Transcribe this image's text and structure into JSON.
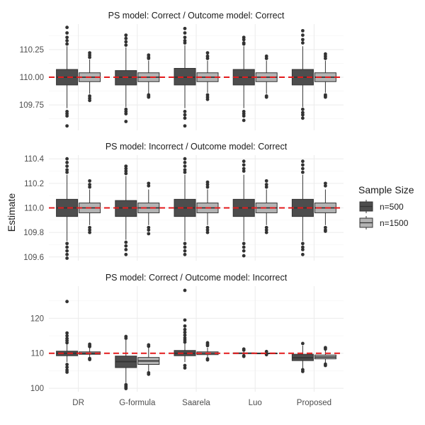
{
  "chart_data": {
    "type": "boxplot",
    "ylabel": "Estimate",
    "xlabel": "",
    "categories": [
      "DR",
      "G-formula",
      "Saarela",
      "Luo",
      "Proposed"
    ],
    "reference_line": {
      "y": 110,
      "color": "#e31a1c",
      "style": "dashed"
    },
    "legend": {
      "title": "Sample Size",
      "placement": "right",
      "entries": [
        {
          "name": "n=500",
          "color": "#4d4d4d"
        },
        {
          "name": "n=1500",
          "color": "#b3b3b3"
        }
      ]
    },
    "panels": [
      {
        "title": "PS model: Correct / Outcome model: Correct",
        "ylim": [
          109.52,
          110.48
        ],
        "yticks": [
          109.75,
          110.0,
          110.25
        ],
        "ytick_labels": [
          "109.75",
          "110.00",
          "110.25"
        ],
        "series": [
          {
            "name": "n=500",
            "boxes": [
              {
                "q1": 109.93,
                "median": 110.0,
                "q3": 110.07,
                "whisker_low": 109.72,
                "whisker_high": 110.28,
                "outliers": [
                  110.45,
                  110.4,
                  110.36,
                  110.33,
                  110.3,
                  109.69,
                  109.67,
                  109.65,
                  109.56
                ]
              },
              {
                "q1": 109.93,
                "median": 110.0,
                "q3": 110.06,
                "whisker_low": 109.73,
                "whisker_high": 110.27,
                "outliers": [
                  110.38,
                  110.35,
                  110.32,
                  110.29,
                  109.71,
                  109.69,
                  109.67,
                  109.6
                ]
              },
              {
                "q1": 109.93,
                "median": 110.0,
                "q3": 110.08,
                "whisker_low": 109.72,
                "whisker_high": 110.29,
                "outliers": [
                  110.44,
                  110.4,
                  110.36,
                  110.33,
                  110.31,
                  109.69,
                  109.66,
                  109.63,
                  109.56
                ]
              },
              {
                "q1": 109.93,
                "median": 110.0,
                "q3": 110.07,
                "whisker_low": 109.72,
                "whisker_high": 110.28,
                "outliers": [
                  110.36,
                  110.34,
                  110.31,
                  110.3,
                  109.69,
                  109.67,
                  109.65,
                  109.61
                ]
              },
              {
                "q1": 109.93,
                "median": 110.0,
                "q3": 110.07,
                "whisker_low": 109.73,
                "whisker_high": 110.28,
                "outliers": [
                  110.42,
                  110.38,
                  110.34,
                  110.31,
                  109.71,
                  109.68,
                  109.66,
                  109.63
                ]
              }
            ]
          },
          {
            "name": "n=1500",
            "boxes": [
              {
                "q1": 109.96,
                "median": 110.0,
                "q3": 110.04,
                "whisker_low": 109.85,
                "whisker_high": 110.16,
                "outliers": [
                  110.22,
                  110.2,
                  110.18,
                  109.83,
                  109.81,
                  109.79
                ]
              },
              {
                "q1": 109.96,
                "median": 110.0,
                "q3": 110.04,
                "whisker_low": 109.85,
                "whisker_high": 110.15,
                "outliers": [
                  110.2,
                  110.18,
                  110.17,
                  109.84,
                  109.83,
                  109.82
                ]
              },
              {
                "q1": 109.96,
                "median": 110.0,
                "q3": 110.04,
                "whisker_low": 109.86,
                "whisker_high": 110.15,
                "outliers": [
                  110.22,
                  110.19,
                  110.17,
                  109.84,
                  109.82,
                  109.8
                ]
              },
              {
                "q1": 109.96,
                "median": 110.0,
                "q3": 110.04,
                "whisker_low": 109.85,
                "whisker_high": 110.15,
                "outliers": [
                  110.19,
                  110.17,
                  109.83,
                  109.82
                ]
              },
              {
                "q1": 109.96,
                "median": 110.0,
                "q3": 110.04,
                "whisker_low": 109.86,
                "whisker_high": 110.15,
                "outliers": [
                  110.21,
                  110.19,
                  110.17,
                  109.84,
                  109.83,
                  109.82
                ]
              }
            ]
          }
        ]
      },
      {
        "title": "PS model: Incorrect / Outcome model: Correct",
        "ylim": [
          109.57,
          110.43
        ],
        "yticks": [
          109.6,
          109.8,
          110.0,
          110.2,
          110.4
        ],
        "ytick_labels": [
          "109.6",
          "109.8",
          "110.0",
          "110.2",
          "110.4"
        ],
        "series": [
          {
            "name": "n=500",
            "boxes": [
              {
                "q1": 109.93,
                "median": 110.0,
                "q3": 110.07,
                "whisker_low": 109.73,
                "whisker_high": 110.27,
                "outliers": [
                  110.4,
                  110.37,
                  110.34,
                  110.31,
                  110.29,
                  109.71,
                  109.68,
                  109.65,
                  109.62,
                  109.59
                ]
              },
              {
                "q1": 109.93,
                "median": 110.0,
                "q3": 110.06,
                "whisker_low": 109.74,
                "whisker_high": 110.26,
                "outliers": [
                  110.34,
                  110.32,
                  110.3,
                  110.28,
                  109.72,
                  109.69,
                  109.66,
                  109.62
                ]
              },
              {
                "q1": 109.93,
                "median": 110.0,
                "q3": 110.07,
                "whisker_low": 109.73,
                "whisker_high": 110.27,
                "outliers": [
                  110.4,
                  110.37,
                  110.34,
                  110.31,
                  110.29,
                  109.71,
                  109.68,
                  109.65,
                  109.62
                ]
              },
              {
                "q1": 109.93,
                "median": 110.0,
                "q3": 110.07,
                "whisker_low": 109.73,
                "whisker_high": 110.27,
                "outliers": [
                  110.38,
                  110.35,
                  110.32,
                  110.3,
                  109.71,
                  109.68,
                  109.65,
                  109.61
                ]
              },
              {
                "q1": 109.93,
                "median": 110.0,
                "q3": 110.07,
                "whisker_low": 109.73,
                "whisker_high": 110.27,
                "outliers": [
                  110.38,
                  110.35,
                  110.32,
                  110.29,
                  109.71,
                  109.68,
                  109.66,
                  109.62
                ]
              }
            ]
          },
          {
            "name": "n=1500",
            "boxes": [
              {
                "q1": 109.96,
                "median": 110.0,
                "q3": 110.04,
                "whisker_low": 109.86,
                "whisker_high": 110.15,
                "outliers": [
                  110.22,
                  110.19,
                  110.17,
                  109.84,
                  109.82,
                  109.8
                ]
              },
              {
                "q1": 109.96,
                "median": 110.0,
                "q3": 110.04,
                "whisker_low": 109.86,
                "whisker_high": 110.15,
                "outliers": [
                  110.2,
                  110.18,
                  109.84,
                  109.82,
                  109.79
                ]
              },
              {
                "q1": 109.96,
                "median": 110.0,
                "q3": 110.04,
                "whisker_low": 109.86,
                "whisker_high": 110.15,
                "outliers": [
                  110.21,
                  110.19,
                  110.17,
                  109.84,
                  109.82,
                  109.8
                ]
              },
              {
                "q1": 109.96,
                "median": 110.0,
                "q3": 110.04,
                "whisker_low": 109.86,
                "whisker_high": 110.15,
                "outliers": [
                  110.22,
                  110.19,
                  110.17,
                  109.84,
                  109.82,
                  109.8
                ]
              },
              {
                "q1": 109.96,
                "median": 110.0,
                "q3": 110.04,
                "whisker_low": 109.86,
                "whisker_high": 110.15,
                "outliers": [
                  110.2,
                  110.18,
                  109.84,
                  109.82,
                  109.81
                ]
              }
            ]
          }
        ]
      },
      {
        "title": "PS model: Correct / Outcome model: Incorrect",
        "ylim": [
          99.0,
          129.2
        ],
        "yticks": [
          100,
          110,
          120
        ],
        "ytick_labels": [
          "100",
          "110",
          "120"
        ],
        "series": [
          {
            "name": "n=500",
            "boxes": [
              {
                "q1": 109.3,
                "median": 110.0,
                "q3": 110.6,
                "whisker_low": 107.5,
                "whisker_high": 112.5,
                "outliers": [
                  124.8,
                  115.8,
                  115.0,
                  114.2,
                  113.6,
                  113.0,
                  106.8,
                  106.0,
                  105.2,
                  104.6
                ]
              },
              {
                "q1": 105.9,
                "median": 107.6,
                "q3": 109.2,
                "whisker_low": 101.5,
                "whisker_high": 113.8,
                "outliers": [
                  114.8,
                  114.3,
                  101.0,
                  100.6,
                  100.2,
                  99.9
                ]
              },
              {
                "q1": 109.3,
                "median": 110.0,
                "q3": 110.8,
                "whisker_low": 107.5,
                "whisker_high": 112.8,
                "outliers": [
                  128.0,
                  119.5,
                  117.8,
                  116.8,
                  116.0,
                  115.2,
                  114.4,
                  113.8,
                  113.2,
                  106.5,
                  105.8
                ]
              },
              {
                "q1": 109.9,
                "median": 110.0,
                "q3": 110.1,
                "whisker_low": 109.6,
                "whisker_high": 110.4,
                "outliers": [
                  111.2,
                  110.9,
                  109.3,
                  109.1
                ]
              },
              {
                "q1": 107.9,
                "median": 108.7,
                "q3": 109.7,
                "whisker_low": 105.8,
                "whisker_high": 112.2,
                "outliers": [
                  112.8,
                  105.3,
                  104.8
                ]
              }
            ]
          },
          {
            "name": "n=1500",
            "boxes": [
              {
                "q1": 109.7,
                "median": 110.0,
                "q3": 110.4,
                "whisker_low": 108.9,
                "whisker_high": 111.5,
                "outliers": [
                  112.6,
                  112.2,
                  111.9,
                  108.5,
                  108.2
                ]
              },
              {
                "q1": 106.8,
                "median": 107.8,
                "q3": 108.8,
                "whisker_low": 104.8,
                "whisker_high": 111.6,
                "outliers": [
                  112.4,
                  112.0,
                  104.4,
                  104.0
                ]
              },
              {
                "q1": 109.6,
                "median": 110.0,
                "q3": 110.4,
                "whisker_low": 108.8,
                "whisker_high": 111.6,
                "outliers": [
                  113.0,
                  112.6,
                  112.2,
                  108.4,
                  108.1
                ]
              },
              {
                "q1": 109.95,
                "median": 110.0,
                "q3": 110.05,
                "whisker_low": 109.8,
                "whisker_high": 110.2,
                "outliers": [
                  110.5,
                  109.6
                ]
              },
              {
                "q1": 108.4,
                "median": 108.9,
                "q3": 109.5,
                "whisker_low": 107.3,
                "whisker_high": 110.8,
                "outliers": [
                  111.6,
                  111.2,
                  106.9,
                  106.5
                ]
              }
            ]
          }
        ]
      }
    ]
  }
}
